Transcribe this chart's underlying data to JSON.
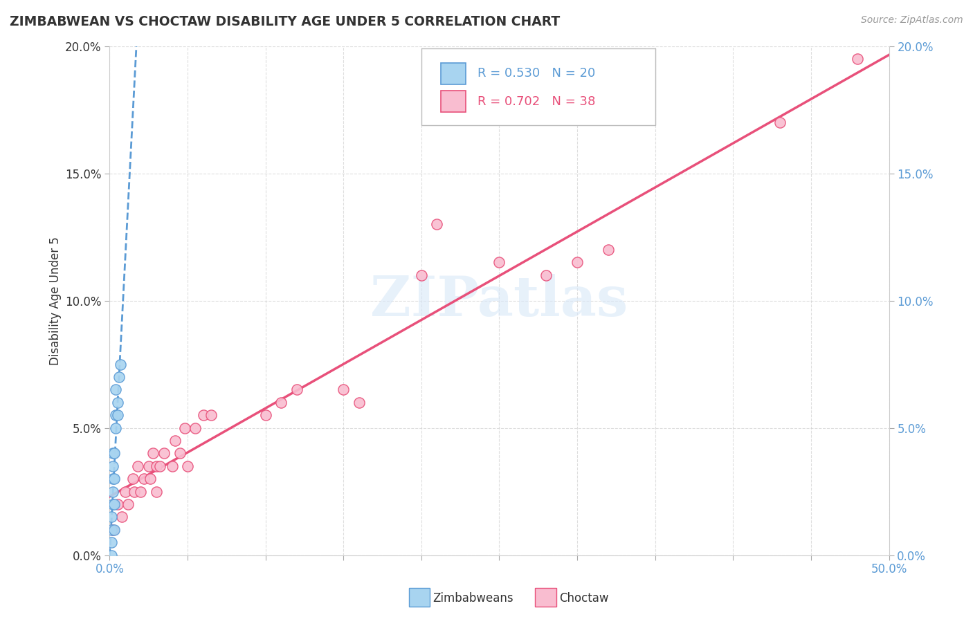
{
  "title": "ZIMBABWEAN VS CHOCTAW DISABILITY AGE UNDER 5 CORRELATION CHART",
  "source_text": "Source: ZipAtlas.com",
  "ylabel": "Disability Age Under 5",
  "legend_label_1": "Zimbabweans",
  "legend_label_2": "Choctaw",
  "r1": 0.53,
  "n1": 20,
  "r2": 0.702,
  "n2": 38,
  "color1": "#a8d4f0",
  "color2": "#f9bdd0",
  "line_color1": "#5b9bd5",
  "line_color2": "#e8507a",
  "xlim": [
    0.0,
    0.5
  ],
  "ylim": [
    0.0,
    0.2
  ],
  "xticks": [
    0.0,
    0.05,
    0.1,
    0.15,
    0.2,
    0.25,
    0.3,
    0.35,
    0.4,
    0.45,
    0.5
  ],
  "yticks": [
    0.0,
    0.05,
    0.1,
    0.15,
    0.2
  ],
  "xtick_labels_show": [
    "0.0%",
    "",
    "",
    "",
    "",
    "",
    "",
    "",
    "",
    "",
    "50.0%"
  ],
  "ytick_labels_left": [
    "0.0%",
    "5.0%",
    "10.0%",
    "15.0%",
    "20.0%"
  ],
  "ytick_labels_right": [
    "0.0%",
    "5.0%",
    "10.0%",
    "15.0%",
    "20.0%"
  ],
  "zimbabwean_x": [
    0.001,
    0.001,
    0.001,
    0.001,
    0.002,
    0.002,
    0.002,
    0.002,
    0.002,
    0.003,
    0.003,
    0.003,
    0.003,
    0.004,
    0.004,
    0.004,
    0.005,
    0.005,
    0.006,
    0.007
  ],
  "zimbabwean_y": [
    0.0,
    0.005,
    0.01,
    0.015,
    0.02,
    0.025,
    0.03,
    0.035,
    0.04,
    0.01,
    0.02,
    0.03,
    0.04,
    0.05,
    0.055,
    0.065,
    0.055,
    0.06,
    0.07,
    0.075
  ],
  "choctaw_x": [
    0.002,
    0.005,
    0.008,
    0.01,
    0.012,
    0.015,
    0.016,
    0.018,
    0.02,
    0.022,
    0.025,
    0.026,
    0.028,
    0.03,
    0.03,
    0.032,
    0.035,
    0.04,
    0.042,
    0.045,
    0.048,
    0.05,
    0.055,
    0.06,
    0.065,
    0.1,
    0.11,
    0.12,
    0.15,
    0.16,
    0.2,
    0.21,
    0.25,
    0.28,
    0.3,
    0.32,
    0.43,
    0.48
  ],
  "choctaw_y": [
    0.01,
    0.02,
    0.015,
    0.025,
    0.02,
    0.03,
    0.025,
    0.035,
    0.025,
    0.03,
    0.035,
    0.03,
    0.04,
    0.025,
    0.035,
    0.035,
    0.04,
    0.035,
    0.045,
    0.04,
    0.05,
    0.035,
    0.05,
    0.055,
    0.055,
    0.055,
    0.06,
    0.065,
    0.065,
    0.06,
    0.11,
    0.13,
    0.115,
    0.11,
    0.115,
    0.12,
    0.17,
    0.195
  ],
  "watermark": "ZIPatlas",
  "background_color": "#ffffff",
  "grid_color": "#d0d0d0",
  "title_color": "#333333",
  "source_color": "#999999",
  "ylabel_color": "#333333",
  "left_ytick_color": "#333333",
  "right_ytick_color": "#5b9bd5",
  "xtick_color": "#5b9bd5"
}
